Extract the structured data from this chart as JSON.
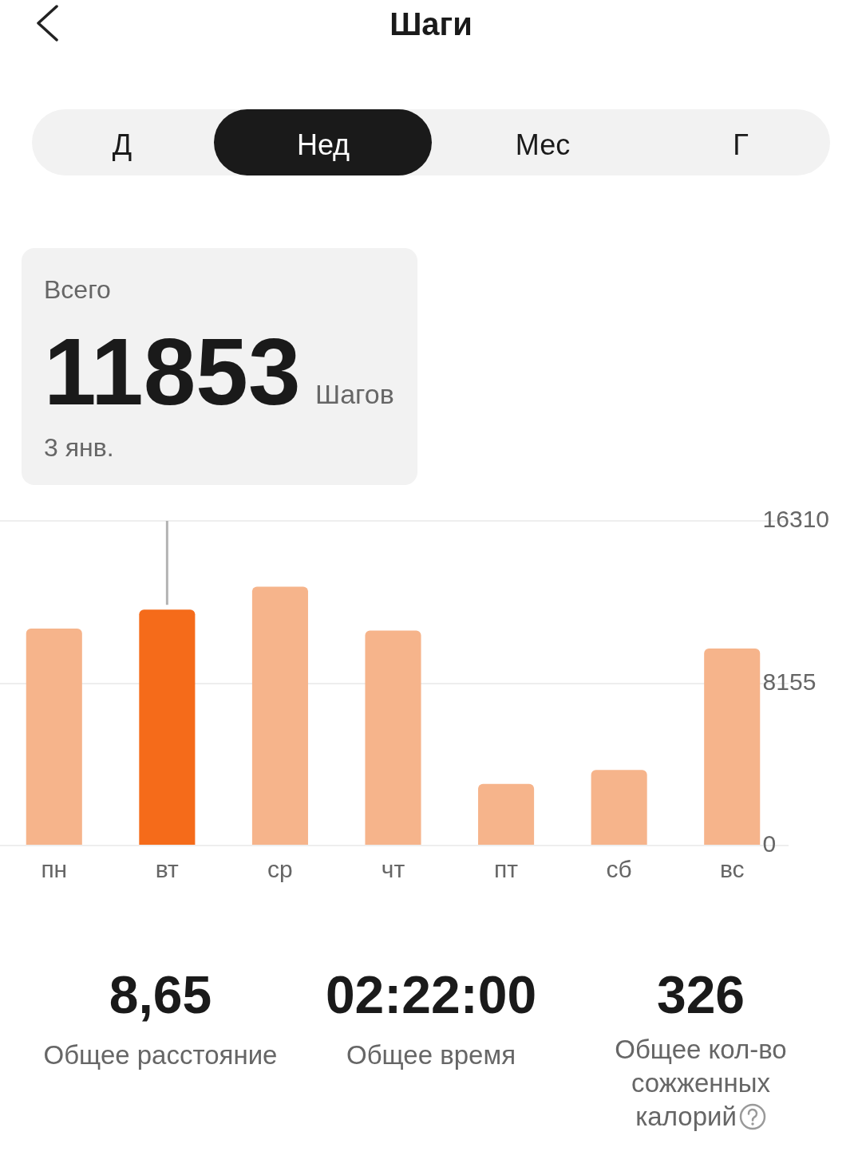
{
  "chart_data": {
    "type": "bar",
    "title": "Шаги",
    "categories": [
      "пн",
      "вт",
      "ср",
      "чт",
      "пт",
      "сб",
      "вс"
    ],
    "values": [
      10900,
      11853,
      13000,
      10800,
      3100,
      3800,
      9900
    ],
    "colors": [
      "#f6b48b",
      "#f56b1a",
      "#f6b48b",
      "#f6b48b",
      "#f6b48b",
      "#f6b48b",
      "#f6b48b"
    ],
    "ylim": [
      0,
      16310
    ],
    "yticks": [
      0,
      8155,
      16310
    ],
    "grid": "y",
    "ref_lines": [
      {
        "axis": "x",
        "value": "вт",
        "color": "#b3b3b3"
      }
    ],
    "annotations": [
      "Д",
      "Нед",
      "Мес",
      "Г",
      "Всего",
      "11853",
      "Шагов",
      "3 янв.",
      "8,65",
      "Общее расстояние",
      "02:22:00",
      "Общее время",
      "326",
      "Общее кол-во сожженных калорий"
    ]
  }
}
